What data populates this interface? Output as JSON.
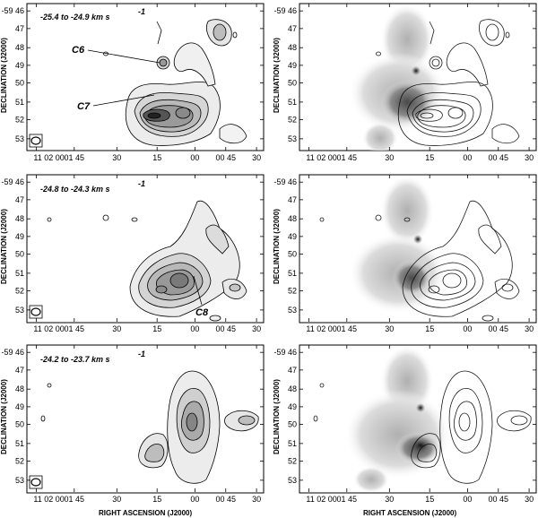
{
  "figure": {
    "xlabel": "RIGHT ASCENSION (J2000)",
    "ylabel": "DECLINATION (J2000)",
    "ra_ticks": [
      "11 02 00",
      "01 45",
      "30",
      "15",
      "00",
      "00 45",
      "30"
    ],
    "dec_ticks": [
      "-59 46",
      "47",
      "48",
      "49",
      "50",
      "51",
      "52",
      "53"
    ],
    "rows": [
      {
        "velocity_label": "-25.4  to  -24.9  km s",
        "unit_exp": "-1",
        "clumps": [
          "C6",
          "C7"
        ]
      },
      {
        "velocity_label": "-24.8  to  -24.3  km s",
        "unit_exp": "-1",
        "clumps": [
          "C8"
        ]
      },
      {
        "velocity_label": "-24.2  to  -23.7  km s",
        "unit_exp": "-1",
        "clumps": []
      }
    ]
  }
}
